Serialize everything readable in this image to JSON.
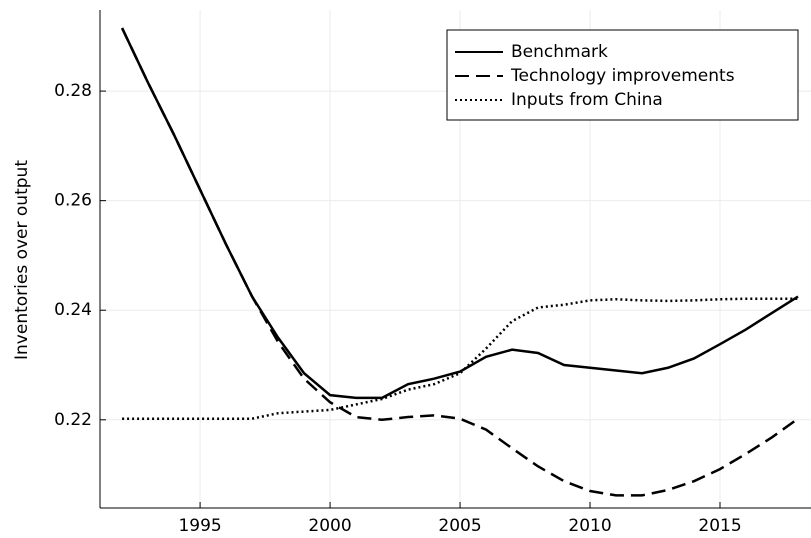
{
  "chart_data": {
    "type": "line",
    "y_label": "Inventories over output",
    "x": [
      1992,
      1993,
      1994,
      1995,
      1996,
      1997,
      1998,
      1999,
      2000,
      2001,
      2002,
      2003,
      2004,
      2005,
      2006,
      2007,
      2008,
      2009,
      2010,
      2011,
      2012,
      2013,
      2014,
      2015,
      2016,
      2017,
      2018
    ],
    "series": [
      {
        "name": "Benchmark",
        "color": "#000000",
        "dash": "solid",
        "values": [
          0.2915,
          0.2815,
          0.272,
          0.262,
          0.252,
          0.2425,
          0.235,
          0.2285,
          0.2245,
          0.224,
          0.224,
          0.2265,
          0.2275,
          0.2288,
          0.2315,
          0.2328,
          0.2322,
          0.23,
          0.2295,
          0.229,
          0.2285,
          0.2295,
          0.2312,
          0.2338,
          0.2365,
          0.2395,
          0.2425
        ]
      },
      {
        "name": "Technology improvements",
        "color": "#000000",
        "dash": "dashed",
        "values": [
          0.2915,
          0.2815,
          0.272,
          0.262,
          0.252,
          0.2425,
          0.2342,
          0.2275,
          0.2232,
          0.2205,
          0.22,
          0.2205,
          0.2208,
          0.2202,
          0.2182,
          0.2148,
          0.2115,
          0.2088,
          0.207,
          0.2062,
          0.2062,
          0.2072,
          0.2088,
          0.211,
          0.2138,
          0.2168,
          0.2202
        ]
      },
      {
        "name": "Inputs from China",
        "color": "#000000",
        "dash": "dotted",
        "values": [
          0.2202,
          0.2202,
          0.2202,
          0.2202,
          0.2202,
          0.2202,
          0.2212,
          0.2215,
          0.2218,
          0.2228,
          0.2238,
          0.2255,
          0.2265,
          0.2285,
          0.233,
          0.238,
          0.2405,
          0.241,
          0.2418,
          0.242,
          0.2418,
          0.2417,
          0.2418,
          0.242,
          0.2421,
          0.2421,
          0.2421
        ]
      }
    ],
    "xlim": [
      1991.15,
      2018.5
    ],
    "xticks": [
      1995,
      2000,
      2005,
      2010,
      2015
    ],
    "ylim": [
      0.2039,
      0.2948
    ],
    "yticks": [
      0.22,
      0.24,
      0.26,
      0.28
    ],
    "grid": true,
    "legend": "upper right"
  }
}
